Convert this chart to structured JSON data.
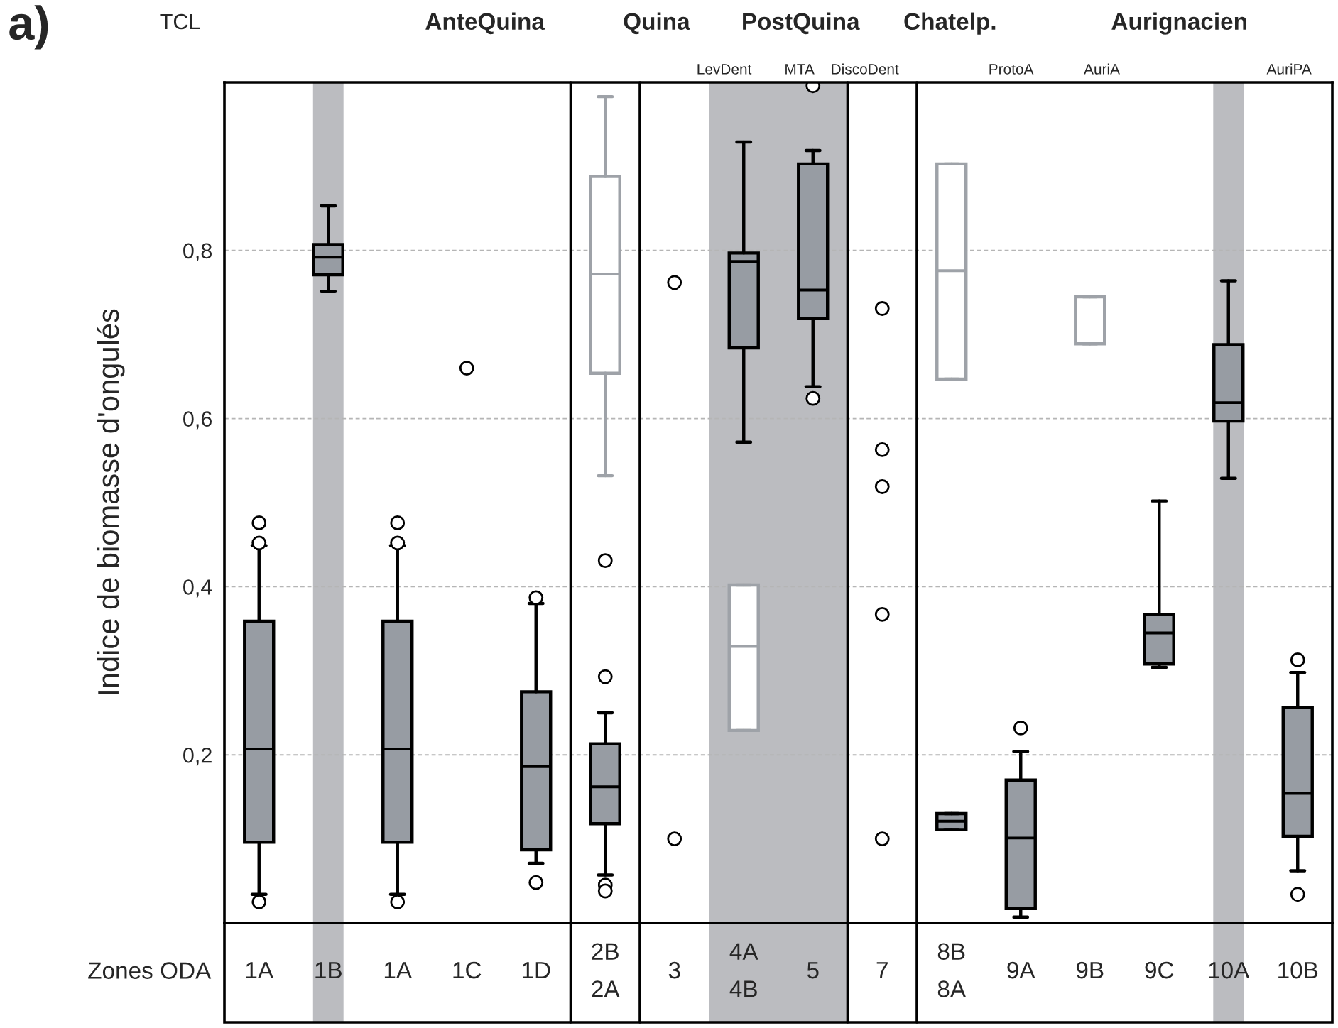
{
  "chart_data": {
    "type": "box",
    "title": "a)",
    "ylabel": "Indice de biomasse d'ongulés",
    "xlabel": "Zones ODA",
    "categories": [
      "1A",
      "1B",
      "1A",
      "1C",
      "1D",
      "2B\n2A",
      "3",
      "4A\n4B",
      "5",
      "7",
      "8B\n8A",
      "9A",
      "9B",
      "9C",
      "10A",
      "10B"
    ],
    "series": [
      {
        "color": "#979ca3",
        "boxes": [
          {
            "low": 0.034,
            "q1": 0.096,
            "median": 0.207,
            "q3": 0.359,
            "high": 0.449,
            "outliers": [
              0.476,
              0.452,
              0.025
            ]
          },
          {
            "low": 0.751,
            "q1": 0.771,
            "median": 0.792,
            "q3": 0.807,
            "high": 0.853
          },
          {
            "low": 0.034,
            "q1": 0.096,
            "median": 0.207,
            "q3": 0.359,
            "high": 0.449,
            "outliers": [
              0.476,
              0.452,
              0.025
            ]
          },
          null,
          {
            "low": 0.071,
            "q1": 0.087,
            "median": 0.186,
            "q3": 0.275,
            "high": 0.38,
            "outliers": [
              0.387,
              0.048
            ]
          },
          {
            "low": 0.057,
            "q1": 0.118,
            "median": 0.162,
            "q3": 0.213,
            "high": 0.25,
            "outliers": [
              0.431,
              0.293,
              0.045,
              0.038
            ]
          },
          null,
          {
            "low": 0.572,
            "q1": 0.684,
            "median": 0.787,
            "q3": 0.797,
            "high": 0.929
          },
          {
            "low": 0.638,
            "q1": 0.719,
            "median": 0.753,
            "q3": 0.903,
            "high": 0.919,
            "outliers": [
              0.996,
              0.624
            ]
          },
          null,
          {
            "low": 0.111,
            "q1": 0.111,
            "median": 0.121,
            "q3": 0.13,
            "high": 0.13
          },
          {
            "low": 0.007,
            "q1": 0.017,
            "median": 0.101,
            "q3": 0.17,
            "high": 0.204,
            "outliers": [
              0.232
            ]
          },
          null,
          {
            "low": 0.304,
            "q1": 0.308,
            "median": 0.345,
            "q3": 0.367,
            "high": 0.502
          },
          {
            "low": 0.529,
            "q1": 0.597,
            "median": 0.619,
            "q3": 0.688,
            "high": 0.764
          },
          {
            "low": 0.062,
            "q1": 0.103,
            "median": 0.154,
            "q3": 0.256,
            "high": 0.298,
            "outliers": [
              0.313,
              0.034
            ]
          }
        ]
      },
      {
        "color": "#9ea2a8",
        "boxes": [
          null,
          null,
          null,
          null,
          null,
          {
            "low": 0.532,
            "q1": 0.654,
            "median": 0.772,
            "q3": 0.888,
            "high": 0.983
          },
          null,
          {
            "low": 0.229,
            "q1": 0.229,
            "median": 0.329,
            "q3": 0.402,
            "high": 0.402
          },
          null,
          null,
          {
            "low": 0.647,
            "q1": 0.647,
            "median": 0.776,
            "q3": 0.903,
            "high": 0.903
          },
          null,
          {
            "low": 0.689,
            "q1": 0.689,
            "median": 0.745,
            "q3": 0.745,
            "high": 0.745
          },
          null,
          null,
          null
        ]
      },
      {
        "type": "scatter",
        "color": "#000000",
        "marker": "circle",
        "x": [
          "1C",
          "3",
          "3",
          "7",
          "7",
          "7",
          "7",
          "7"
        ],
        "values": [
          0.66,
          0.762,
          0.1,
          0.731,
          0.563,
          0.519,
          0.367,
          0.1
        ]
      }
    ],
    "ylim": [
      0,
      1
    ],
    "yticks": [
      {
        "value": 0.2,
        "label": "0,2"
      },
      {
        "value": 0.4,
        "label": "0,4"
      },
      {
        "value": 0.6,
        "label": "0,6"
      },
      {
        "value": 0.8,
        "label": "0,8"
      }
    ],
    "annotations": [
      "TCL",
      "AnteQuina",
      "Quina",
      "PostQuina",
      "Chatelp.",
      "Aurignacien",
      "LevDent",
      "MTA",
      "DiscoDent",
      "ProtoA",
      "AuriA",
      "AuriPA"
    ],
    "bands": [
      {
        "axis": "x",
        "from": "1B",
        "to": "1B",
        "color": "#bbbcc0"
      },
      {
        "axis": "x",
        "from": "4A\n4B",
        "to": "5",
        "color": "#bbbcc0"
      },
      {
        "axis": "x",
        "from": "10A",
        "to": "10A",
        "color": "#bbbcc0"
      }
    ],
    "grid": "y",
    "legend": false
  }
}
